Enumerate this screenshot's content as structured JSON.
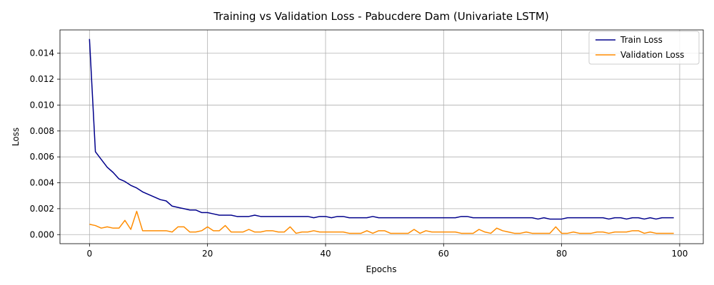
{
  "chart_data": {
    "type": "line",
    "title": "Training vs Validation Loss - Pabucdere Dam (Univariate LSTM)",
    "xlabel": "Epochs",
    "ylabel": "Loss",
    "xlim": [
      -5,
      104
    ],
    "ylim": [
      -0.0007,
      0.0158
    ],
    "xticks": [
      0,
      20,
      40,
      60,
      80,
      100
    ],
    "xtick_labels": [
      "0",
      "20",
      "40",
      "60",
      "80",
      "100"
    ],
    "yticks": [
      0.0,
      0.002,
      0.004,
      0.006,
      0.008,
      0.01,
      0.012,
      0.014
    ],
    "ytick_labels": [
      "0.000",
      "0.002",
      "0.004",
      "0.006",
      "0.008",
      "0.010",
      "0.012",
      "0.014"
    ],
    "grid": true,
    "legend_position": "top-right",
    "series": [
      {
        "name": "Train Loss",
        "color": "#00008b",
        "x_start": 0,
        "values": [
          0.0151,
          0.0064,
          0.0058,
          0.0052,
          0.0048,
          0.0043,
          0.0041,
          0.0038,
          0.0036,
          0.0033,
          0.0031,
          0.0029,
          0.0027,
          0.0026,
          0.0022,
          0.0021,
          0.002,
          0.0019,
          0.0019,
          0.0017,
          0.0017,
          0.0016,
          0.0015,
          0.0015,
          0.0015,
          0.0014,
          0.0014,
          0.0014,
          0.0015,
          0.0014,
          0.0014,
          0.0014,
          0.0014,
          0.0014,
          0.0014,
          0.0014,
          0.0014,
          0.0014,
          0.0013,
          0.0014,
          0.0014,
          0.0013,
          0.0014,
          0.0014,
          0.0013,
          0.0013,
          0.0013,
          0.0013,
          0.0014,
          0.0013,
          0.0013,
          0.0013,
          0.0013,
          0.0013,
          0.0013,
          0.0013,
          0.0013,
          0.0013,
          0.0013,
          0.0013,
          0.0013,
          0.0013,
          0.0013,
          0.0014,
          0.0014,
          0.0013,
          0.0013,
          0.0013,
          0.0013,
          0.0013,
          0.0013,
          0.0013,
          0.0013,
          0.0013,
          0.0013,
          0.0013,
          0.0012,
          0.0013,
          0.0012,
          0.0012,
          0.0012,
          0.0013,
          0.0013,
          0.0013,
          0.0013,
          0.0013,
          0.0013,
          0.0013,
          0.0012,
          0.0013,
          0.0013,
          0.0012,
          0.0013,
          0.0013,
          0.0012,
          0.0013,
          0.0012,
          0.0013,
          0.0013,
          0.0013
        ]
      },
      {
        "name": "Validation Loss",
        "color": "#ff8c00",
        "x_start": 0,
        "values": [
          0.0008,
          0.0007,
          0.0005,
          0.0006,
          0.0005,
          0.0005,
          0.0011,
          0.0004,
          0.0018,
          0.0003,
          0.0003,
          0.0003,
          0.0003,
          0.0003,
          0.0002,
          0.0006,
          0.0006,
          0.0002,
          0.0002,
          0.0003,
          0.0006,
          0.0003,
          0.0003,
          0.0007,
          0.0002,
          0.0002,
          0.0002,
          0.0004,
          0.0002,
          0.0002,
          0.0003,
          0.0003,
          0.0002,
          0.0002,
          0.0006,
          0.0001,
          0.0002,
          0.0002,
          0.0003,
          0.0002,
          0.0002,
          0.0002,
          0.0002,
          0.0002,
          0.0001,
          0.0001,
          0.0001,
          0.0003,
          0.0001,
          0.0003,
          0.0003,
          0.0001,
          0.0001,
          0.0001,
          0.0001,
          0.0004,
          0.0001,
          0.0003,
          0.0002,
          0.0002,
          0.0002,
          0.0002,
          0.0002,
          0.0001,
          0.0001,
          0.0001,
          0.0004,
          0.0002,
          0.0001,
          0.0005,
          0.0003,
          0.0002,
          0.0001,
          0.0001,
          0.0002,
          0.0001,
          0.0001,
          0.0001,
          0.0001,
          0.0006,
          0.0001,
          0.0001,
          0.0002,
          0.0001,
          0.0001,
          0.0001,
          0.0002,
          0.0002,
          0.0001,
          0.0002,
          0.0002,
          0.0002,
          0.0003,
          0.0003,
          0.0001,
          0.0002,
          0.0001,
          0.0001,
          0.0001,
          0.0001
        ]
      }
    ]
  }
}
